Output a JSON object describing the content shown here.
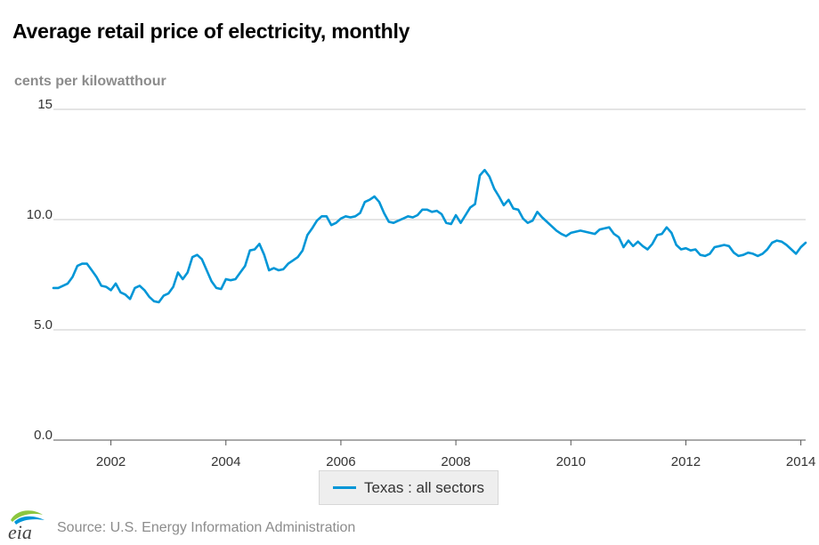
{
  "title": "Average retail price of electricity, monthly",
  "source": "Source: U.S. Energy Information Administration",
  "logo_text": "eia",
  "colors": {
    "series": "#0096d7",
    "grid": "#c8c8c8",
    "axis_text": "#333333",
    "muted": "#8c8c8c",
    "logo_blue": "#0096d7",
    "logo_green": "#8cc63f"
  },
  "chart_data": {
    "type": "line",
    "title": "Average retail price of electricity, monthly",
    "ylabel": "cents per kilowatthour",
    "xlabel": "",
    "ylim": [
      0,
      15
    ],
    "xlim": [
      "2001-01",
      "2014-02"
    ],
    "y_ticks": [
      "0.0",
      "5.0",
      "10.0",
      "15"
    ],
    "x_ticks": [
      "2002",
      "2004",
      "2006",
      "2008",
      "2010",
      "2012",
      "2014"
    ],
    "grid": true,
    "legend_position": "bottom",
    "series": [
      {
        "name": "Texas : all sectors",
        "color": "#0096d7",
        "x": [
          "2001-01",
          "2001-02",
          "2001-03",
          "2001-04",
          "2001-05",
          "2001-06",
          "2001-07",
          "2001-08",
          "2001-09",
          "2001-10",
          "2001-11",
          "2001-12",
          "2002-01",
          "2002-02",
          "2002-03",
          "2002-04",
          "2002-05",
          "2002-06",
          "2002-07",
          "2002-08",
          "2002-09",
          "2002-10",
          "2002-11",
          "2002-12",
          "2003-01",
          "2003-02",
          "2003-03",
          "2003-04",
          "2003-05",
          "2003-06",
          "2003-07",
          "2003-08",
          "2003-09",
          "2003-10",
          "2003-11",
          "2003-12",
          "2004-01",
          "2004-02",
          "2004-03",
          "2004-04",
          "2004-05",
          "2004-06",
          "2004-07",
          "2004-08",
          "2004-09",
          "2004-10",
          "2004-11",
          "2004-12",
          "2005-01",
          "2005-02",
          "2005-03",
          "2005-04",
          "2005-05",
          "2005-06",
          "2005-07",
          "2005-08",
          "2005-09",
          "2005-10",
          "2005-11",
          "2005-12",
          "2006-01",
          "2006-02",
          "2006-03",
          "2006-04",
          "2006-05",
          "2006-06",
          "2006-07",
          "2006-08",
          "2006-09",
          "2006-10",
          "2006-11",
          "2006-12",
          "2007-01",
          "2007-02",
          "2007-03",
          "2007-04",
          "2007-05",
          "2007-06",
          "2007-07",
          "2007-08",
          "2007-09",
          "2007-10",
          "2007-11",
          "2007-12",
          "2008-01",
          "2008-02",
          "2008-03",
          "2008-04",
          "2008-05",
          "2008-06",
          "2008-07",
          "2008-08",
          "2008-09",
          "2008-10",
          "2008-11",
          "2008-12",
          "2009-01",
          "2009-02",
          "2009-03",
          "2009-04",
          "2009-05",
          "2009-06",
          "2009-07",
          "2009-08",
          "2009-09",
          "2009-10",
          "2009-11",
          "2009-12",
          "2010-01",
          "2010-02",
          "2010-03",
          "2010-04",
          "2010-05",
          "2010-06",
          "2010-07",
          "2010-08",
          "2010-09",
          "2010-10",
          "2010-11",
          "2010-12",
          "2011-01",
          "2011-02",
          "2011-03",
          "2011-04",
          "2011-05",
          "2011-06",
          "2011-07",
          "2011-08",
          "2011-09",
          "2011-10",
          "2011-11",
          "2011-12",
          "2012-01",
          "2012-02",
          "2012-03",
          "2012-04",
          "2012-05",
          "2012-06",
          "2012-07",
          "2012-08",
          "2012-09",
          "2012-10",
          "2012-11",
          "2012-12",
          "2013-01",
          "2013-02",
          "2013-03",
          "2013-04",
          "2013-05",
          "2013-06",
          "2013-07",
          "2013-08",
          "2013-09",
          "2013-10",
          "2013-11",
          "2013-12",
          "2014-01",
          "2014-02"
        ],
        "values": [
          6.9,
          6.9,
          7.0,
          7.1,
          7.4,
          7.9,
          8.0,
          8.0,
          7.7,
          7.4,
          7.0,
          6.95,
          6.8,
          7.1,
          6.7,
          6.6,
          6.4,
          6.9,
          7.0,
          6.8,
          6.5,
          6.3,
          6.25,
          6.55,
          6.65,
          6.95,
          7.6,
          7.3,
          7.6,
          8.3,
          8.4,
          8.2,
          7.7,
          7.2,
          6.9,
          6.85,
          7.3,
          7.25,
          7.3,
          7.6,
          7.9,
          8.6,
          8.65,
          8.9,
          8.4,
          7.7,
          7.8,
          7.7,
          7.75,
          8.0,
          8.15,
          8.3,
          8.6,
          9.3,
          9.6,
          9.95,
          10.15,
          10.15,
          9.75,
          9.85,
          10.05,
          10.15,
          10.1,
          10.15,
          10.3,
          10.8,
          10.9,
          11.05,
          10.8,
          10.3,
          9.9,
          9.85,
          9.95,
          10.05,
          10.15,
          10.1,
          10.2,
          10.45,
          10.45,
          10.35,
          10.4,
          10.25,
          9.85,
          9.8,
          10.2,
          9.85,
          10.2,
          10.55,
          10.7,
          12.0,
          12.25,
          11.95,
          11.4,
          11.05,
          10.65,
          10.9,
          10.5,
          10.45,
          10.05,
          9.85,
          9.95,
          10.35,
          10.1,
          9.9,
          9.7,
          9.5,
          9.35,
          9.25,
          9.4,
          9.45,
          9.5,
          9.45,
          9.4,
          9.35,
          9.55,
          9.6,
          9.65,
          9.35,
          9.2,
          8.75,
          9.05,
          8.8,
          9.0,
          8.8,
          8.65,
          8.9,
          9.3,
          9.35,
          9.65,
          9.4,
          8.85,
          8.65,
          8.7,
          8.6,
          8.65,
          8.4,
          8.35,
          8.45,
          8.75,
          8.8,
          8.85,
          8.8,
          8.5,
          8.35,
          8.4,
          8.5,
          8.45,
          8.35,
          8.45,
          8.65,
          8.95,
          9.05,
          9.0,
          8.85,
          8.65,
          8.45,
          8.75,
          8.95
        ]
      }
    ]
  }
}
